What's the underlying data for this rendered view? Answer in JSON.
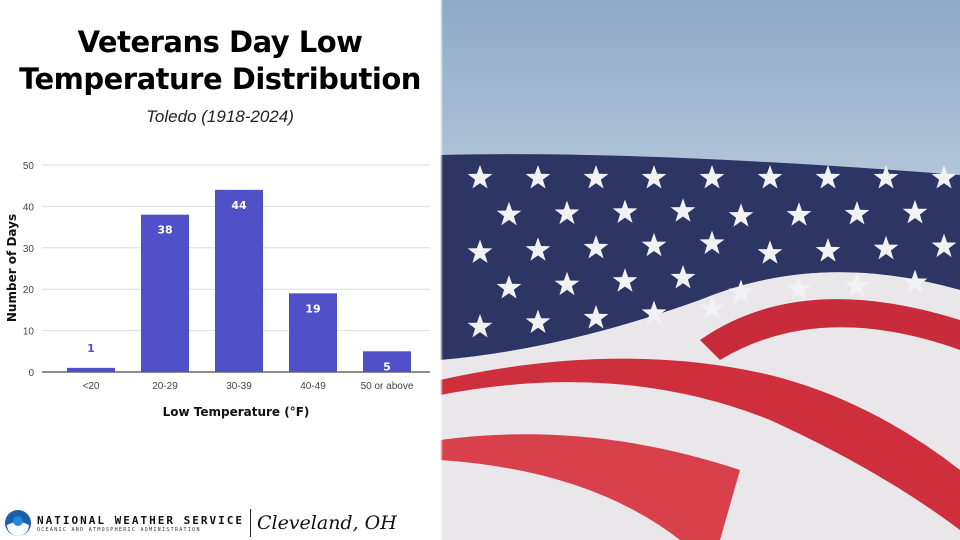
{
  "header": {
    "title_line1": "Veterans Day Low",
    "title_line2": "Temperature Distribution",
    "subtitle": "Toledo (1918-2024)"
  },
  "chart_data": {
    "type": "bar",
    "title": "Veterans Day Low Temperature Distribution",
    "subtitle": "Toledo (1918-2024)",
    "categories": [
      "<20",
      "20-29",
      "30-39",
      "40-49",
      "50 or above"
    ],
    "values": [
      1,
      38,
      44,
      19,
      5
    ],
    "xlabel": "Low Temperature (°F)",
    "ylabel": "Number of Days",
    "ylim": [
      0,
      50
    ],
    "yticks": [
      0,
      10,
      20,
      30,
      40,
      50
    ],
    "grid": true,
    "bar_color": "#5050c8"
  },
  "footer": {
    "org": "NATIONAL WEATHER SERVICE",
    "org_sub": "OCEANIC AND ATMOSPHERIC ADMINISTRATION",
    "office": "Cleveland, OH"
  }
}
